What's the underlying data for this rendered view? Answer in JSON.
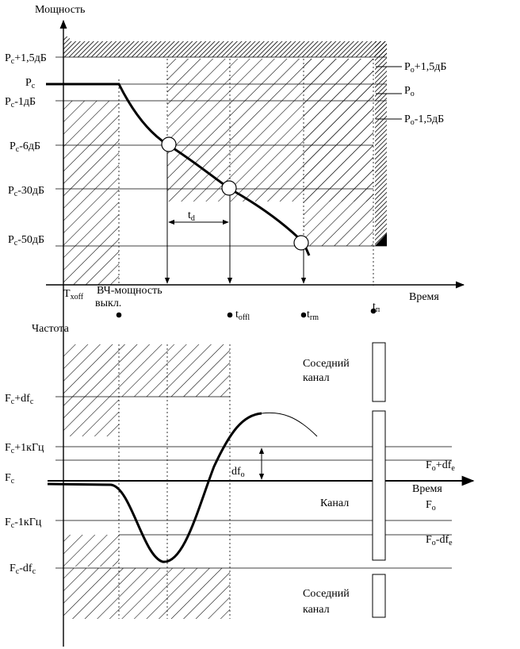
{
  "top": {
    "y_axis_label": "Мощность",
    "x_axis_label": "Время",
    "levels": {
      "pc_plus": {
        "main": "P",
        "sub": "c",
        "rest": "+1,5дБ"
      },
      "pc": {
        "main": "P",
        "sub": "c",
        "rest": ""
      },
      "pc_minus1": {
        "main": "P",
        "sub": "c",
        "rest": "-1дБ"
      },
      "pc_minus6": {
        "main": "P",
        "sub": "c",
        "rest": "-6дБ"
      },
      "pc_minus30": {
        "main": "P",
        "sub": "c",
        "rest": "-30дБ"
      },
      "pc_minus50": {
        "main": "P",
        "sub": "c",
        "rest": "-50дБ"
      },
      "po_plus": {
        "main": "P",
        "sub": "o",
        "rest": "+1,5дБ"
      },
      "po": {
        "main": "P",
        "sub": "o",
        "rest": ""
      },
      "po_minus": {
        "main": "P",
        "sub": "o",
        "rest": "-1,5дБ"
      }
    },
    "td": {
      "main": "t",
      "sub": "d"
    },
    "txoff": {
      "main": "T",
      "sub": "xoff"
    },
    "rf_off_line1": "ВЧ-мощность",
    "rf_off_line2": "выкл.",
    "toffl": {
      "main": "t",
      "sub": "offl"
    },
    "trm": {
      "main": "t",
      "sub": "rm"
    },
    "tn": {
      "main": "t",
      "sub": "п"
    }
  },
  "bottom": {
    "y_axis_label": "Частота",
    "x_axis_label": "Время",
    "levels": {
      "fc_plus_df": {
        "main": "F",
        "sub": "c",
        "rest": "+df",
        "sub2": "c"
      },
      "fc_plus_1k": {
        "main": "F",
        "sub": "c",
        "rest": "+1кГц",
        "sub2": ""
      },
      "fc": {
        "main": "F",
        "sub": "c",
        "rest": "",
        "sub2": ""
      },
      "fc_minus_1k": {
        "main": "F",
        "sub": "c",
        "rest": "-1кГц",
        "sub2": ""
      },
      "fc_minus_df": {
        "main": "F",
        "sub": "c",
        "rest": "-df",
        "sub2": "c"
      },
      "fo_plus": {
        "main": "F",
        "sub": "o",
        "rest": "+df",
        "sub2": "e"
      },
      "fo": {
        "main": "F",
        "sub": "o",
        "rest": "",
        "sub2": ""
      },
      "fo_minus": {
        "main": "F",
        "sub": "o",
        "rest": "-df",
        "sub2": "e"
      }
    },
    "dfo": {
      "main": "df",
      "sub": "o"
    },
    "adjacent_top_line1": "Соседний",
    "adjacent_top_line2": "канал",
    "channel": "Канал",
    "adjacent_bottom_line1": "Соседний",
    "adjacent_bottom_line2": "канал"
  }
}
